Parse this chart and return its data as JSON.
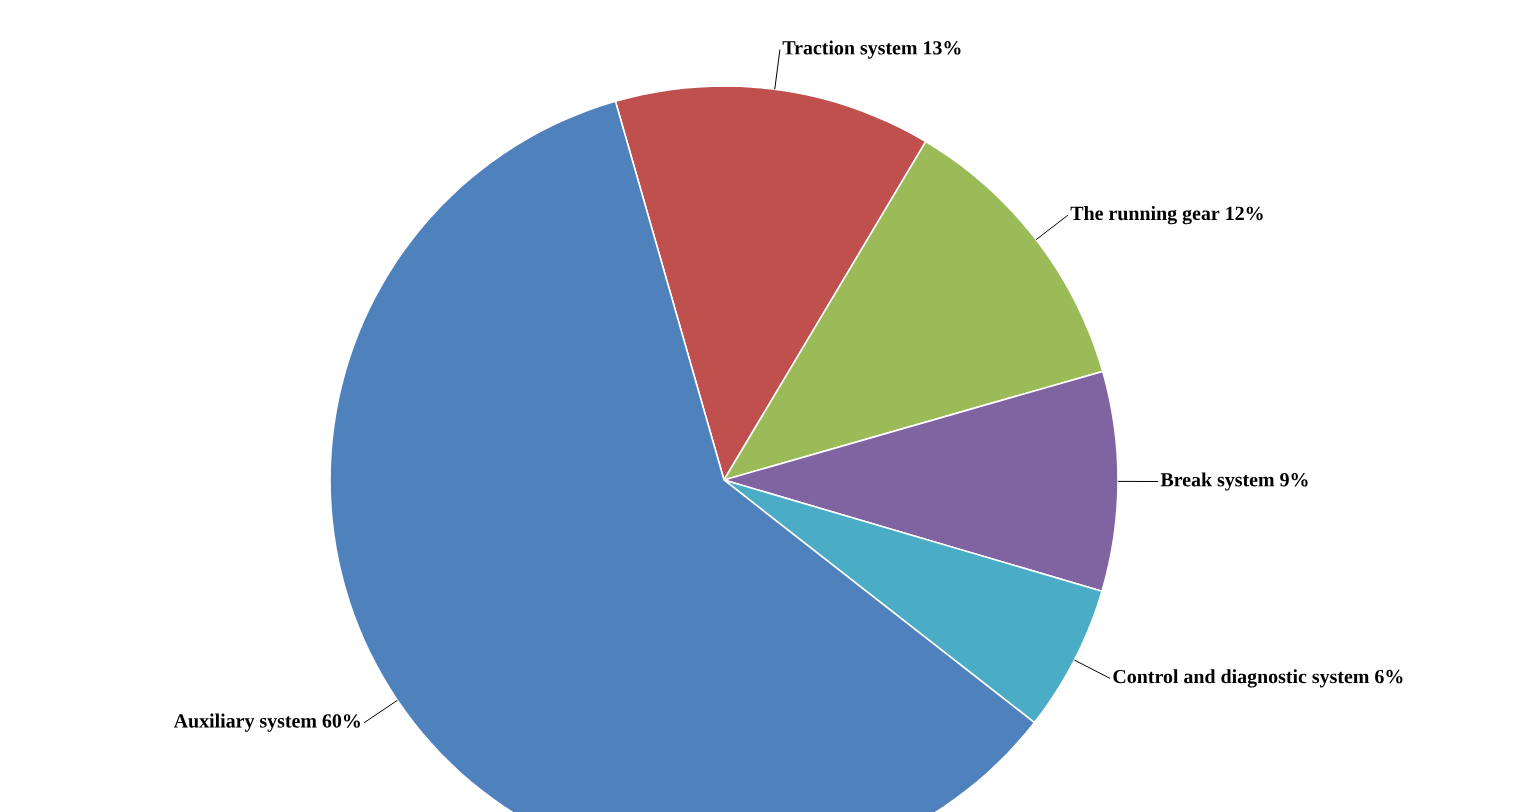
{
  "chart_data": {
    "type": "pie",
    "categories": [
      "Traction system",
      "The running gear",
      "Break system",
      "Control and diagnostic system",
      "Auxiliary system"
    ],
    "values": [
      13,
      12,
      9,
      6,
      60
    ],
    "value_labels": [
      "13%",
      "12%",
      "9%",
      "6%",
      "60%"
    ],
    "colors": [
      "#c0504d",
      "#9bbb59",
      "#8064a2",
      "#4bacc6",
      "#4f81bd"
    ]
  }
}
